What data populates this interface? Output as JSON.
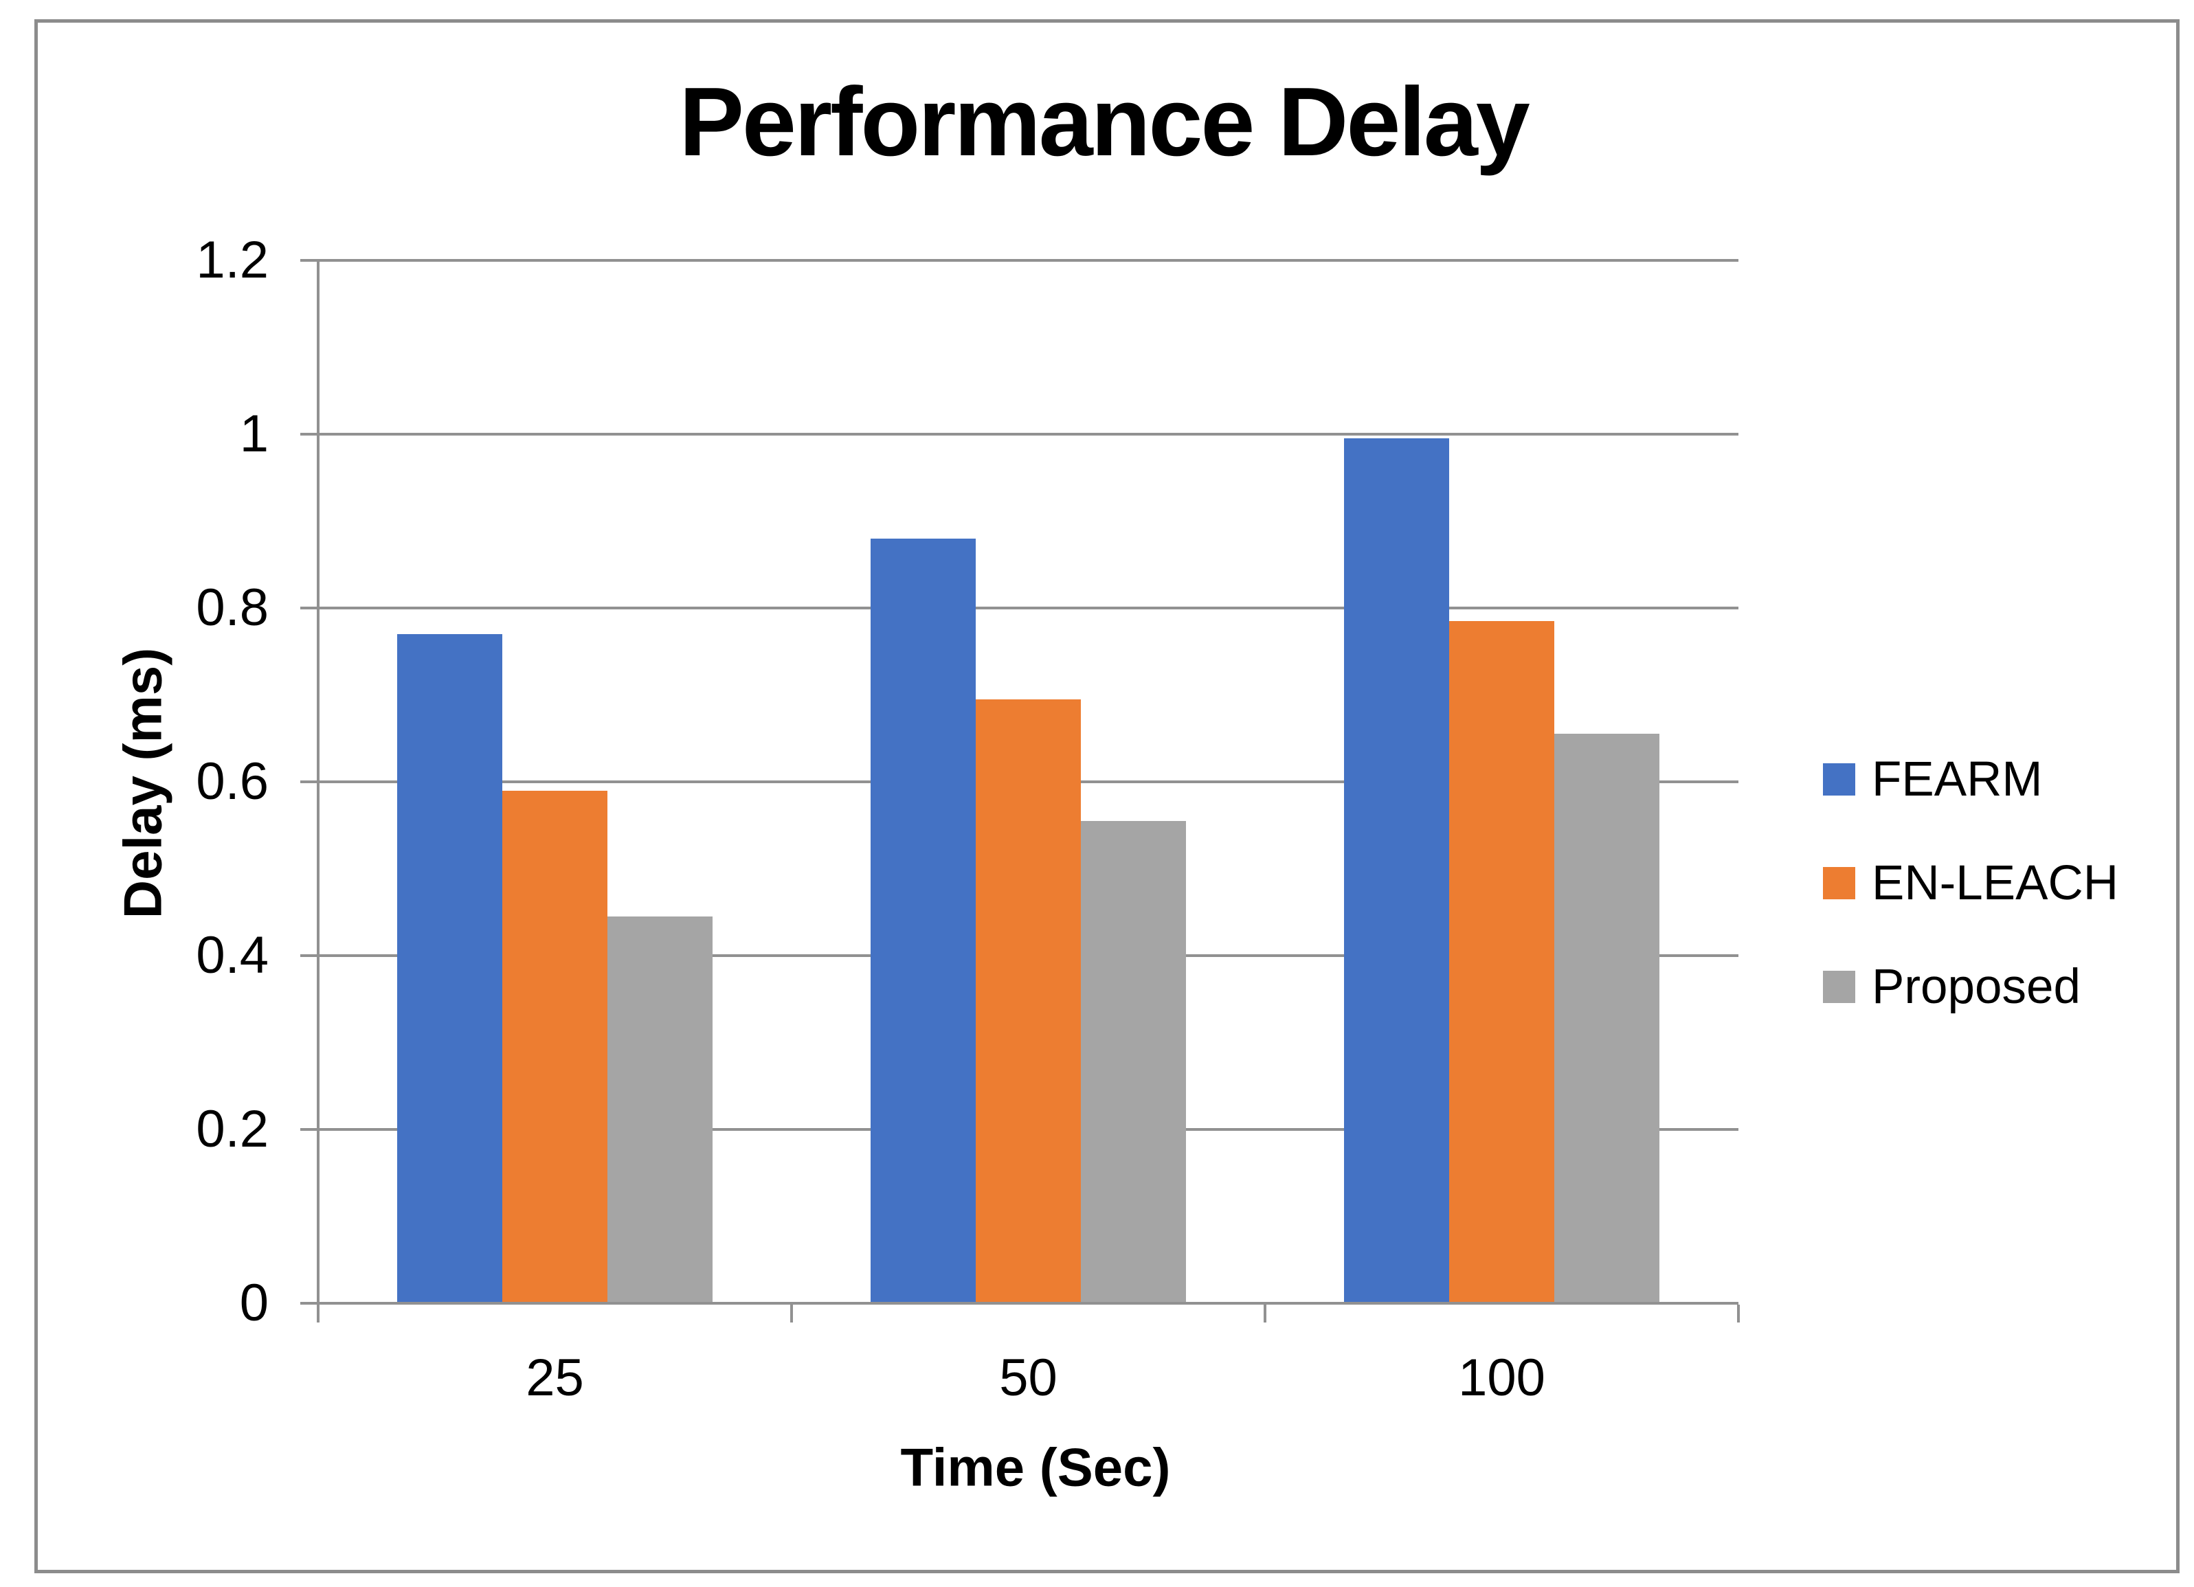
{
  "chart": {
    "title": "Performance Delay",
    "y_axis_title": "Delay (ms)",
    "x_axis_title": "Time (Sec)"
  },
  "chart_data": {
    "type": "bar",
    "title": "Performance Delay",
    "xlabel": "Time (Sec)",
    "ylabel": "Delay (ms)",
    "categories": [
      "25",
      "50",
      "100"
    ],
    "series": [
      {
        "name": "FEARM",
        "color": "#4472C4",
        "values": [
          0.77,
          0.88,
          0.995
        ]
      },
      {
        "name": "EN-LEACH",
        "color": "#ED7D31",
        "values": [
          0.59,
          0.695,
          0.785
        ]
      },
      {
        "name": "Proposed",
        "color": "#A5A5A5",
        "values": [
          0.445,
          0.555,
          0.655
        ]
      }
    ],
    "ylim": [
      0,
      1.2
    ],
    "yticks": [
      "0",
      "0.2",
      "0.4",
      "0.6",
      "0.8",
      "1",
      "1.2"
    ],
    "grid": true,
    "legend_position": "right",
    "grid_color": "#919191",
    "frame_color": "#8c8c8c",
    "text_color": "#000000"
  }
}
